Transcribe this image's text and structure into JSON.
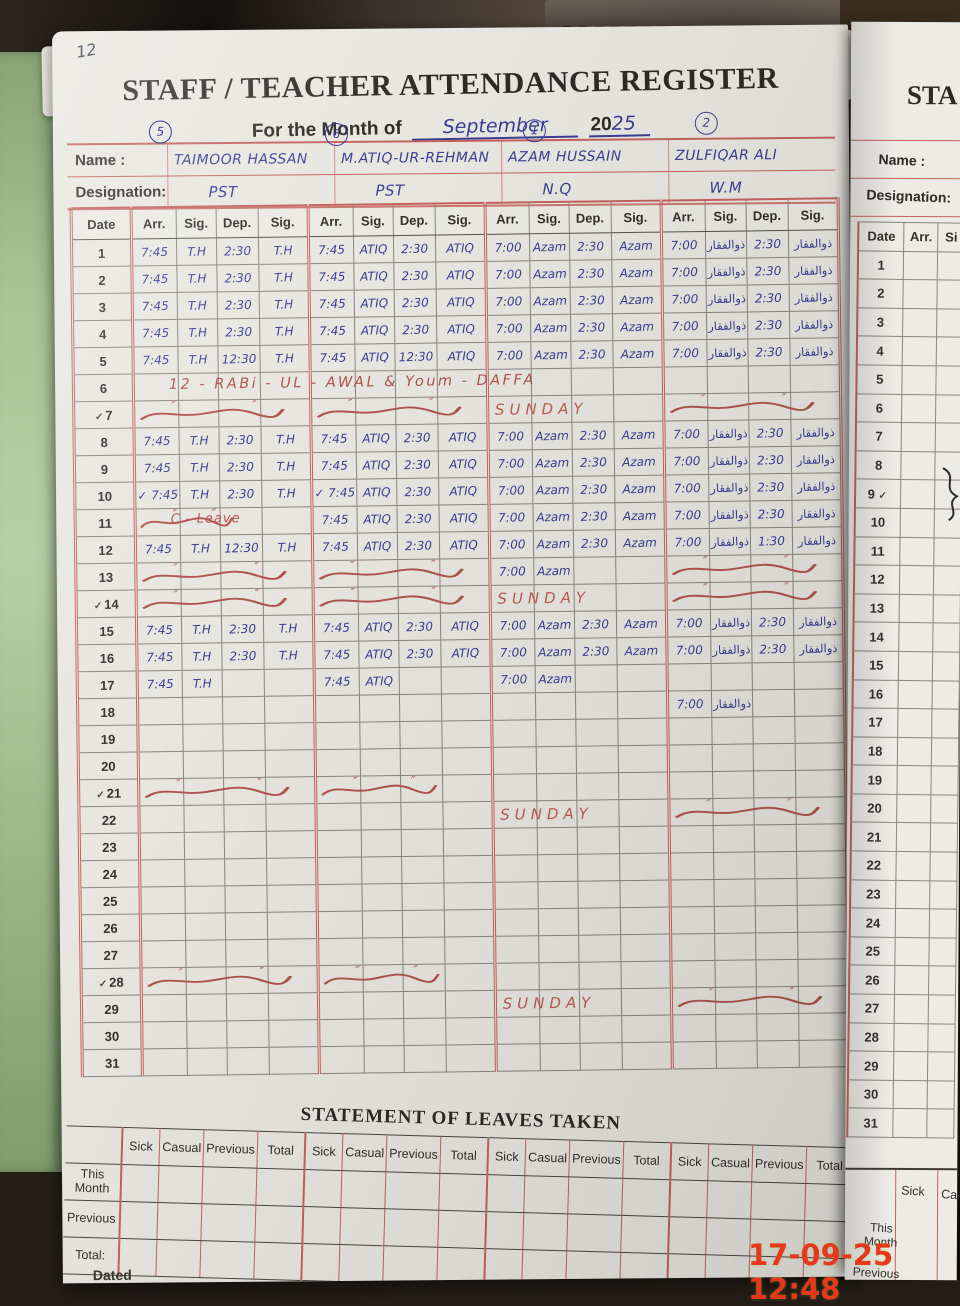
{
  "photo": {
    "timestamp": "17-09-25 12:48",
    "page_number_handwritten": "12"
  },
  "register": {
    "title": "STAFF / TEACHER ATTENDANCE REGISTER",
    "month_line": {
      "label": "For the Month of",
      "month_handwritten": "September",
      "year_printed": "20",
      "year_handwritten": "25"
    },
    "name_label": "Name :",
    "designation_label": "Designation:",
    "staff": [
      {
        "number": "5",
        "name": "TAIMOOR HASSAN",
        "designation": "PST"
      },
      {
        "number": "6",
        "name": "M.ATIQ-UR-REHMAN",
        "designation": "PST"
      },
      {
        "number": "1",
        "name": "AZAM HUSSAIN",
        "designation": "N.Q"
      },
      {
        "number": "2",
        "name": "ZULFIQAR ALI",
        "designation": "W.M"
      }
    ],
    "marks": {
      "check": "✓",
      "ditto": "″"
    },
    "attendance": {
      "columns": {
        "date": "Date",
        "sub": [
          "Arr.",
          "Sig.",
          "Dep.",
          "Sig."
        ]
      },
      "rows": [
        {
          "date": "1",
          "staff": [
            [
              "7:45",
              "T.H",
              "2:30",
              "T.H"
            ],
            [
              "7:45",
              "ATIQ",
              "2:30",
              "ATIQ"
            ],
            [
              "7:00",
              "Azam",
              "2:30",
              "Azam"
            ],
            [
              "7:00",
              "ذوالفقار",
              "2:30",
              "ذوالفقار"
            ]
          ]
        },
        {
          "date": "2",
          "staff": [
            [
              "7:45",
              "T.H",
              "2:30",
              "T.H"
            ],
            [
              "7:45",
              "ATIQ",
              "2:30",
              "ATIQ"
            ],
            [
              "7:00",
              "Azam",
              "2:30",
              "Azam"
            ],
            [
              "7:00",
              "ذوالفقار",
              "2:30",
              "ذوالفقار"
            ]
          ]
        },
        {
          "date": "3",
          "staff": [
            [
              "7:45",
              "T.H",
              "2:30",
              "T.H"
            ],
            [
              "7:45",
              "ATIQ",
              "2:30",
              "ATIQ"
            ],
            [
              "7:00",
              "Azam",
              "2:30",
              "Azam"
            ],
            [
              "7:00",
              "ذوالفقار",
              "2:30",
              "ذوالفقار"
            ]
          ]
        },
        {
          "date": "4",
          "staff": [
            [
              "7:45",
              "T.H",
              "2:30",
              "T.H"
            ],
            [
              "7:45",
              "ATIQ",
              "2:30",
              "ATIQ"
            ],
            [
              "7:00",
              "Azam",
              "2:30",
              "Azam"
            ],
            [
              "7:00",
              "ذوالفقار",
              "2:30",
              "ذوالفقار"
            ]
          ]
        },
        {
          "date": "5",
          "staff": [
            [
              "7:45",
              "T.H",
              "12:30",
              "T.H"
            ],
            [
              "7:45",
              "ATIQ",
              "12:30",
              "ATIQ"
            ],
            [
              "7:00",
              "Azam",
              "2:30",
              "Azam"
            ],
            [
              "7:00",
              "ذوالفقار",
              "2:30",
              "ذوالفقار"
            ]
          ]
        },
        {
          "date": "6",
          "type": "holiday",
          "text": "12 - RABi - UL - AWAL  &  Youm - DAFFA"
        },
        {
          "date": "7",
          "type": "sun_full",
          "text": "SUNDAY",
          "check": true
        },
        {
          "date": "8",
          "staff": [
            [
              "7:45",
              "T.H",
              "2:30",
              "T.H"
            ],
            [
              "7:45",
              "ATIQ",
              "2:30",
              "ATIQ"
            ],
            [
              "7:00",
              "Azam",
              "2:30",
              "Azam"
            ],
            [
              "7:00",
              "ذوالفقار",
              "2:30",
              "ذوالفقار"
            ]
          ]
        },
        {
          "date": "9",
          "staff": [
            [
              "7:45",
              "T.H",
              "2:30",
              "T.H"
            ],
            [
              "7:45",
              "ATIQ",
              "2:30",
              "ATIQ"
            ],
            [
              "7:00",
              "Azam",
              "2:30",
              "Azam"
            ],
            [
              "7:00",
              "ذوالفقار",
              "2:30",
              "ذوالفقار"
            ]
          ]
        },
        {
          "date": "10",
          "staff": [
            [
              "✓ 7:45",
              "T.H",
              "2:30",
              "T.H"
            ],
            [
              "✓ 7:45",
              "ATIQ",
              "2:30",
              "ATIQ"
            ],
            [
              "7:00",
              "Azam",
              "2:30",
              "Azam"
            ],
            [
              "7:00",
              "ذوالفقار",
              "2:30",
              "ذوالفقار"
            ]
          ]
        },
        {
          "date": "11",
          "type": "leave",
          "text": "C - Leave",
          "staff": [
            null,
            [
              "7:45",
              "ATIQ",
              "2:30",
              "ATIQ"
            ],
            [
              "7:00",
              "Azam",
              "2:30",
              "Azam"
            ],
            [
              "7:00",
              "ذوالفقار",
              "2:30",
              "ذوالفقار"
            ]
          ]
        },
        {
          "date": "12",
          "staff": [
            [
              "7:45",
              "T.H",
              "12:30",
              "T.H"
            ],
            [
              "7:45",
              "ATIQ",
              "2:30",
              "ATIQ"
            ],
            [
              "7:00",
              "Azam",
              "2:30",
              "Azam"
            ],
            [
              "7:00",
              "ذوالفقار",
              "1:30",
              "ذوالفقار"
            ]
          ]
        },
        {
          "date": "13",
          "type": "partial",
          "waves": [
            0,
            1,
            3
          ],
          "staff": [
            null,
            null,
            [
              "7:00",
              "Azam",
              "",
              ""
            ],
            null
          ]
        },
        {
          "date": "14",
          "type": "sun_full",
          "text": "SUNDAY",
          "check": true
        },
        {
          "date": "15",
          "staff": [
            [
              "7:45",
              "T.H",
              "2:30",
              "T.H"
            ],
            [
              "7:45",
              "ATIQ",
              "2:30",
              "ATIQ"
            ],
            [
              "7:00",
              "Azam",
              "2:30",
              "Azam"
            ],
            [
              "7:00",
              "ذوالفقار",
              "2:30",
              "ذوالفقار"
            ]
          ]
        },
        {
          "date": "16",
          "staff": [
            [
              "7:45",
              "T.H",
              "2:30",
              "T.H"
            ],
            [
              "7:45",
              "ATIQ",
              "2:30",
              "ATIQ"
            ],
            [
              "7:00",
              "Azam",
              "2:30",
              "Azam"
            ],
            [
              "7:00",
              "ذوالفقار",
              "2:30",
              "ذوالفقار"
            ]
          ]
        },
        {
          "date": "17",
          "staff": [
            [
              "7:45",
              "T.H",
              "",
              ""
            ],
            [
              "7:45",
              "ATIQ",
              "",
              ""
            ],
            [
              "7:00",
              "Azam",
              "",
              ""
            ],
            [
              "",
              "",
              "",
              ""
            ]
          ]
        },
        {
          "date": "18",
          "staff": [
            [
              "",
              "",
              "",
              ""
            ],
            [
              "",
              "",
              "",
              ""
            ],
            [
              "",
              "",
              "",
              ""
            ],
            [
              "7:00",
              "ذوالفقار",
              "",
              ""
            ]
          ]
        },
        {
          "date": "19"
        },
        {
          "date": "20"
        },
        {
          "date": "21",
          "type": "sun_a",
          "check": true
        },
        {
          "date": "22",
          "type": "sun_b",
          "text": "SUNDAY"
        },
        {
          "date": "23"
        },
        {
          "date": "24"
        },
        {
          "date": "25"
        },
        {
          "date": "26"
        },
        {
          "date": "27"
        },
        {
          "date": "28",
          "type": "sun_a",
          "check": true
        },
        {
          "date": "29",
          "type": "sun_b",
          "text": "SUNDAY"
        },
        {
          "date": "30"
        },
        {
          "date": "31"
        }
      ]
    },
    "leaves": {
      "title": "STATEMENT OF LEAVES TAKEN",
      "group_headers": [
        "Sick",
        "Casual",
        "Previous",
        "Total"
      ],
      "row_labels": [
        "This Month",
        "Previous",
        "Total:"
      ]
    },
    "dated_label": "Dated"
  },
  "right_page": {
    "title_partial": "STA",
    "name_label": "Name :",
    "designation_label": "Designation:",
    "headers": {
      "date": "Date",
      "arr": "Arr.",
      "sig_partial": "Si"
    },
    "dates": [
      "1",
      "2",
      "3",
      "4",
      "5",
      "6",
      "7",
      "8",
      "9",
      "10",
      "11",
      "12",
      "13",
      "14",
      "15",
      "16",
      "17",
      "18",
      "19",
      "20",
      "21",
      "22",
      "23",
      "24",
      "25",
      "26",
      "27",
      "28",
      "29",
      "30",
      "31"
    ],
    "checked_date": "9",
    "leaves": {
      "sick": "Sick",
      "casual": "Casual",
      "row1": "This Month",
      "row2": "Previous"
    }
  },
  "ink": {
    "blue": "#3a3e92",
    "red": "#b0544c",
    "grid_red": "#c4625c",
    "timestamp_red": "#e8381c"
  }
}
